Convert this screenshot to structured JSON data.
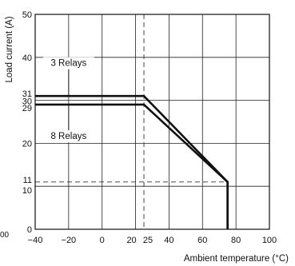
{
  "chart_data": {
    "type": "line",
    "title": "",
    "xlabel": "Ambient temperature (°C)",
    "ylabel": "Load current (A)",
    "xlim": [
      -40,
      100
    ],
    "ylim": [
      0,
      50
    ],
    "grid": true,
    "legend": "none",
    "x_ticks": [
      -40,
      -20,
      0,
      20,
      25,
      40,
      60,
      80,
      100
    ],
    "x_tick_labels": [
      "−40",
      "−20",
      "0",
      "20",
      "25",
      "40",
      "60",
      "80",
      "100"
    ],
    "y_ticks": [
      0,
      10,
      11,
      20,
      29,
      30,
      31,
      40,
      50
    ],
    "y_tick_labels": [
      "0",
      "10",
      "11",
      "20",
      "29",
      "30",
      "31",
      "40",
      "50"
    ],
    "stray_label": "00",
    "series": [
      {
        "name": "3 Relays",
        "x": [
          -40,
          25,
          75,
          75
        ],
        "y": [
          31,
          31,
          11,
          0
        ]
      },
      {
        "name": "8 Relays",
        "x": [
          -40,
          25,
          75,
          75
        ],
        "y": [
          29,
          29,
          11,
          0
        ]
      }
    ],
    "reference_lines": [
      {
        "orientation": "vertical",
        "value": 25,
        "style": "dashed"
      },
      {
        "orientation": "horizontal",
        "value": 11,
        "style": "dashed"
      }
    ],
    "annotations": [
      {
        "text": "3 Relays",
        "series": "3 Relays",
        "at_x": -20,
        "at_y": 38
      },
      {
        "text": "8 Relays",
        "series": "8 Relays",
        "at_x": -20,
        "at_y": 21
      }
    ]
  }
}
